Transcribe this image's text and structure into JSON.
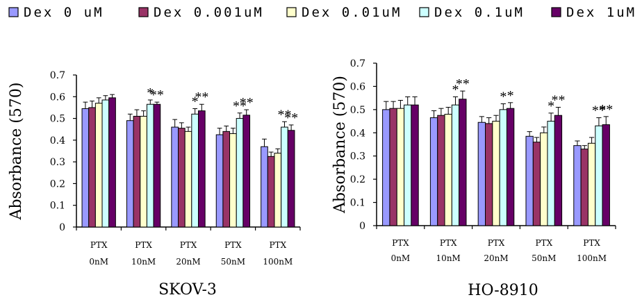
{
  "legend": {
    "entries": [
      {
        "label": "Dex 0 uM",
        "color": "#9999ff"
      },
      {
        "label": "Dex 0.001uM",
        "color": "#993366"
      },
      {
        "label": "Dex 0.01uM",
        "color": "#ffffcc"
      },
      {
        "label": "Dex 0.1uM",
        "color": "#ccffff"
      },
      {
        "label": "Dex 1uM",
        "color": "#660066"
      }
    ]
  },
  "chart_data": [
    {
      "type": "bar",
      "title": "SKOV-3",
      "ylabel": "Absorbance (570)",
      "ylim": [
        0,
        0.7
      ],
      "yticks": [
        "0",
        "0.1",
        "0.2",
        "0.3",
        "0.4",
        "0.5",
        "0.6",
        "0.7"
      ],
      "categories": [
        [
          "PTX",
          "0nM"
        ],
        [
          "PTX",
          "10nM"
        ],
        [
          "PTX",
          "20nM"
        ],
        [
          "PTX",
          "50nM"
        ],
        [
          "PTX",
          "100nM"
        ]
      ],
      "series": [
        {
          "name": "Dex 0 uM",
          "values": [
            0.545,
            0.49,
            0.46,
            0.425,
            0.37
          ],
          "errors": [
            0.03,
            0.03,
            0.035,
            0.03,
            0.035
          ]
        },
        {
          "name": "Dex 0.001uM",
          "values": [
            0.55,
            0.51,
            0.455,
            0.44,
            0.325
          ],
          "errors": [
            0.03,
            0.03,
            0.025,
            0.025,
            0.02
          ]
        },
        {
          "name": "Dex 0.01uM",
          "values": [
            0.57,
            0.51,
            0.44,
            0.43,
            0.34
          ],
          "errors": [
            0.025,
            0.025,
            0.02,
            0.025,
            0.02
          ]
        },
        {
          "name": "Dex 0.1uM",
          "values": [
            0.585,
            0.565,
            0.52,
            0.5,
            0.46
          ],
          "errors": [
            0.02,
            0.02,
            0.025,
            0.025,
            0.025
          ]
        },
        {
          "name": "Dex 1uM",
          "values": [
            0.595,
            0.565,
            0.535,
            0.515,
            0.445
          ],
          "errors": [
            0.015,
            0.01,
            0.03,
            0.025,
            0.025
          ]
        }
      ],
      "annotations": [
        {
          "group": 1,
          "series": 3,
          "text": "*"
        },
        {
          "group": 1,
          "series": 4,
          "text": "**"
        },
        {
          "group": 2,
          "series": 3,
          "text": "*"
        },
        {
          "group": 2,
          "series": 4,
          "text": "**"
        },
        {
          "group": 3,
          "series": 3,
          "text": "**"
        },
        {
          "group": 3,
          "series": 4,
          "text": "**"
        },
        {
          "group": 4,
          "series": 3,
          "text": "**"
        },
        {
          "group": 4,
          "series": 4,
          "text": "**"
        }
      ]
    },
    {
      "type": "bar",
      "title": "HO-8910",
      "ylabel": "Absorbance (570)",
      "ylim": [
        0,
        0.7
      ],
      "yticks": [
        "0",
        "0.1",
        "0.2",
        "0.3",
        "0.4",
        "0.5",
        "0.6",
        "0.7"
      ],
      "categories": [
        [
          "PTX",
          "0nM"
        ],
        [
          "PTX",
          "10nM"
        ],
        [
          "PTX",
          "20nM"
        ],
        [
          "PTX",
          "50nM"
        ],
        [
          "PTX",
          "100nM"
        ]
      ],
      "series": [
        {
          "name": "Dex 0 uM",
          "values": [
            0.5,
            0.465,
            0.445,
            0.385,
            0.345
          ],
          "errors": [
            0.035,
            0.03,
            0.025,
            0.02,
            0.02
          ]
        },
        {
          "name": "Dex 0.001uM",
          "values": [
            0.505,
            0.475,
            0.44,
            0.36,
            0.33
          ],
          "errors": [
            0.03,
            0.03,
            0.025,
            0.02,
            0.015
          ]
        },
        {
          "name": "Dex 0.01uM",
          "values": [
            0.505,
            0.48,
            0.45,
            0.4,
            0.355
          ],
          "errors": [
            0.035,
            0.03,
            0.025,
            0.025,
            0.025
          ]
        },
        {
          "name": "Dex 0.1uM",
          "values": [
            0.52,
            0.52,
            0.5,
            0.45,
            0.43
          ],
          "errors": [
            0.035,
            0.035,
            0.025,
            0.035,
            0.035
          ]
        },
        {
          "name": "Dex 1uM",
          "values": [
            0.52,
            0.545,
            0.505,
            0.475,
            0.435
          ],
          "errors": [
            0.035,
            0.035,
            0.025,
            0.035,
            0.035
          ]
        }
      ],
      "annotations": [
        {
          "group": 1,
          "series": 3,
          "text": "*"
        },
        {
          "group": 1,
          "series": 4,
          "text": "**"
        },
        {
          "group": 2,
          "series": 3,
          "text": "*"
        },
        {
          "group": 2,
          "series": 4,
          "text": "*"
        },
        {
          "group": 3,
          "series": 3,
          "text": "*"
        },
        {
          "group": 3,
          "series": 4,
          "text": "**"
        },
        {
          "group": 4,
          "series": 3,
          "text": "**"
        },
        {
          "group": 4,
          "series": 4,
          "text": "**"
        }
      ]
    }
  ]
}
